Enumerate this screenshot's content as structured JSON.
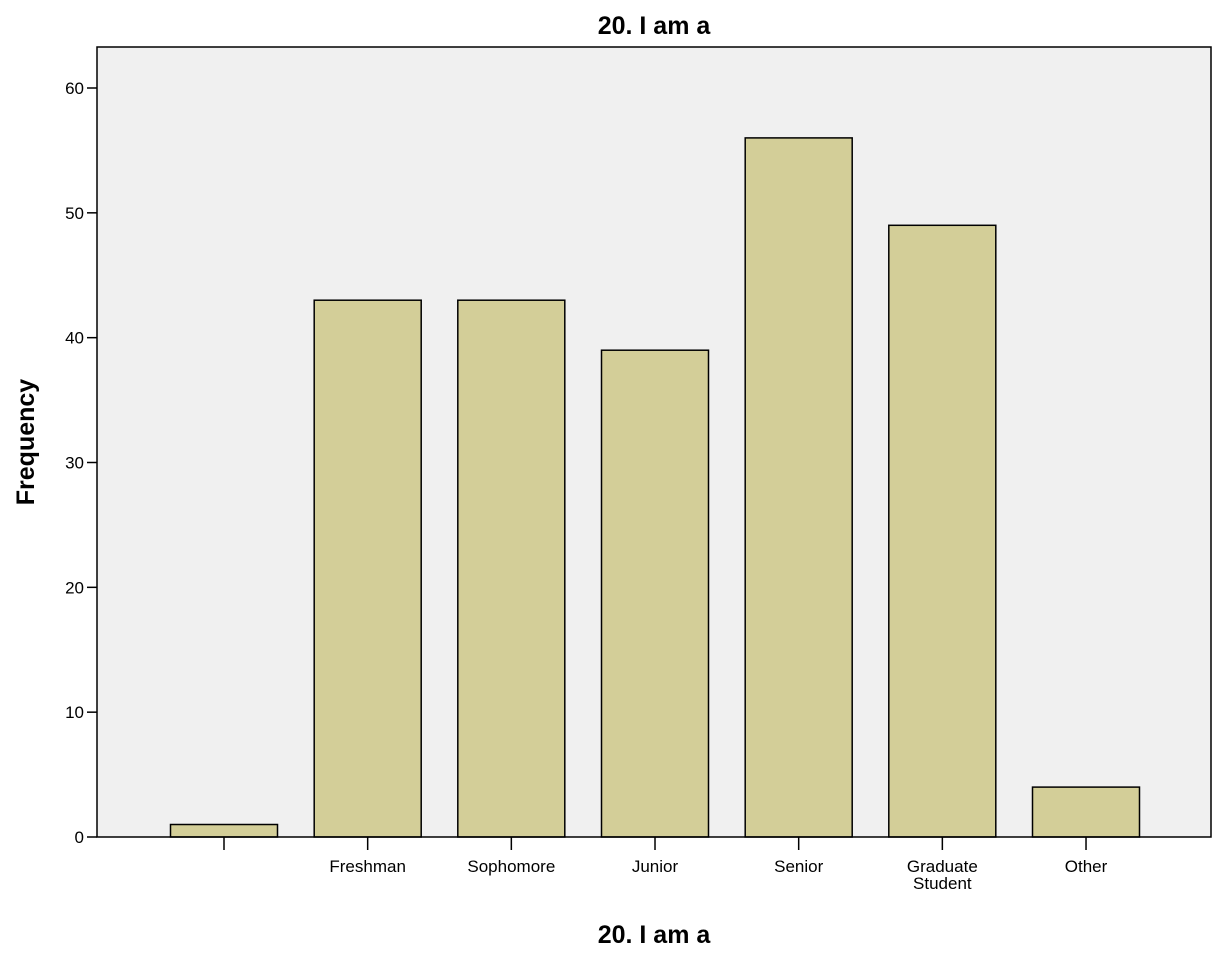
{
  "chart_data": {
    "type": "bar",
    "title": "20. I am a",
    "xlabel": "20. I am a",
    "ylabel": "Frequency",
    "categories": [
      "",
      "Freshman",
      "Sophomore",
      "Junior",
      "Senior",
      "Graduate Student",
      "Other"
    ],
    "category_lines": [
      [
        ""
      ],
      [
        "Freshman"
      ],
      [
        "Sophomore"
      ],
      [
        "Junior"
      ],
      [
        "Senior"
      ],
      [
        "Graduate",
        "Student"
      ],
      [
        "Other"
      ]
    ],
    "values": [
      1,
      43,
      43,
      39,
      56,
      49,
      4
    ],
    "ylim": [
      0,
      63
    ],
    "yticks": [
      0,
      10,
      20,
      30,
      40,
      50,
      60
    ],
    "grid": false,
    "legend": "none",
    "colors": {
      "bar_fill": "#d3ce98",
      "bar_stroke": "#000000",
      "plot_background": "#f0f0f0",
      "frame": "#000000"
    }
  }
}
